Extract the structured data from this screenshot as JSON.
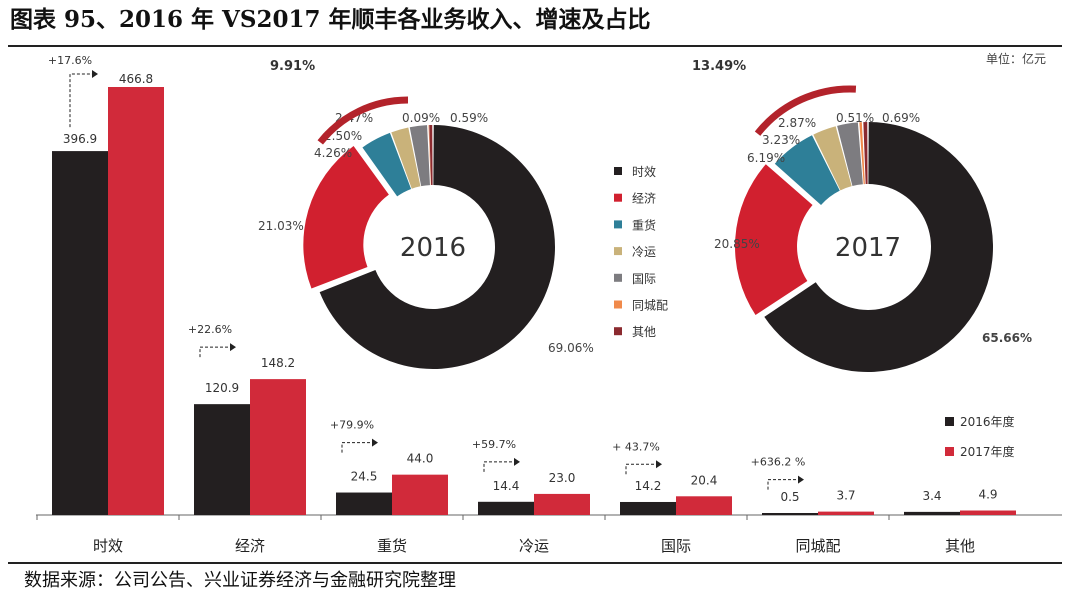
{
  "title": "图表 95、2016 年 VS2017 年顺丰各业务收入、增速及占比",
  "unit": "单位：亿元",
  "source": "数据来源：公司公告、兴业证券经济与金融研究院整理",
  "colors": {
    "s2016": "#231f20",
    "s2017": "#d12a3a",
    "segments": [
      "#231f20",
      "#d1202f",
      "#2e7f98",
      "#c9b27a",
      "#7d7c80",
      "#f08a4b",
      "#8b2a2f"
    ],
    "arc": "#b3232b"
  },
  "chart_data": [
    {
      "type": "bar",
      "categories": [
        "时效",
        "经济",
        "重货",
        "冷运",
        "国际",
        "同城配",
        "其他"
      ],
      "series": [
        {
          "name": "2016年度",
          "values": [
            396.9,
            120.9,
            24.5,
            14.4,
            14.2,
            0.5,
            3.4
          ]
        },
        {
          "name": "2017年度",
          "values": [
            466.8,
            148.2,
            44.0,
            23.0,
            20.4,
            3.7,
            4.9
          ]
        }
      ],
      "value_labels": [
        [
          "396.9",
          "466.8"
        ],
        [
          "120.9",
          "148.2"
        ],
        [
          "24.5",
          "44.0"
        ],
        [
          "14.4",
          "23.0"
        ],
        [
          "14.2",
          "20.4"
        ],
        [
          "0.5",
          "3.7"
        ],
        [
          "3.4",
          "4.9"
        ]
      ],
      "growth": [
        "+17.6%",
        "+22.6%",
        "+79.9%",
        "+59.7%",
        "+ 43.7%",
        "+636.2 %",
        ""
      ],
      "ylim": [
        0,
        470
      ],
      "legend": "bottom-right"
    },
    {
      "type": "pie",
      "center_label": "2016",
      "categories": [
        "时效",
        "经济",
        "重货",
        "冷运",
        "国际",
        "同城配",
        "其他"
      ],
      "values": [
        69.06,
        21.03,
        4.26,
        2.5,
        2.47,
        0.09,
        0.59
      ],
      "labels": [
        "69.06%",
        "21.03%",
        "4.26%",
        "2.50%",
        "2.47%",
        "0.09%",
        "0.59%"
      ],
      "others_total": "9.91%"
    },
    {
      "type": "pie",
      "center_label": "2017",
      "categories": [
        "时效",
        "经济",
        "重货",
        "冷运",
        "国际",
        "同城配",
        "其他"
      ],
      "values": [
        65.66,
        20.85,
        6.19,
        3.23,
        2.87,
        0.51,
        0.69
      ],
      "labels": [
        "65.66%",
        "20.85%",
        "6.19%",
        "3.23%",
        "2.87%",
        "0.51%",
        "0.69%"
      ],
      "others_total": "13.49%"
    }
  ]
}
